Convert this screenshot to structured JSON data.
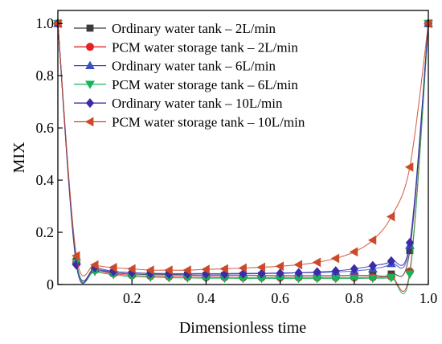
{
  "chart_data": {
    "type": "line",
    "xlabel": "Dimensionless time",
    "ylabel": "MIX",
    "xlim": [
      0.0,
      1.0
    ],
    "ylim": [
      0.0,
      1.05
    ],
    "x_ticks": [
      0.2,
      0.4,
      0.6,
      0.8,
      1.0
    ],
    "x_tick_labels": [
      "0.2",
      "0.4",
      "0.6",
      "0.8",
      "1.0"
    ],
    "y_ticks": [
      0.0,
      0.2,
      0.4,
      0.6,
      0.8,
      1.0
    ],
    "y_tick_labels": [
      "0",
      "0.2",
      "0.4",
      "0.6",
      "0.8",
      "1.0"
    ],
    "grid": false,
    "legend_position": "top-left",
    "series": [
      {
        "name": "Ordinary water tank – 2L/min",
        "color": "#3a3a3a",
        "marker": "square",
        "x": [
          0.0,
          0.05,
          0.1,
          0.15,
          0.2,
          0.25,
          0.3,
          0.35,
          0.4,
          0.45,
          0.5,
          0.55,
          0.6,
          0.65,
          0.7,
          0.75,
          0.8,
          0.85,
          0.9,
          0.95,
          1.0
        ],
        "y": [
          1.0,
          0.09,
          0.06,
          0.045,
          0.04,
          0.038,
          0.037,
          0.036,
          0.035,
          0.035,
          0.035,
          0.035,
          0.034,
          0.034,
          0.034,
          0.034,
          0.035,
          0.035,
          0.04,
          0.13,
          1.0
        ]
      },
      {
        "name": "PCM water storage tank – 2L/min",
        "color": "#e32222",
        "marker": "circle",
        "x": [
          0.0,
          0.05,
          0.1,
          0.15,
          0.2,
          0.25,
          0.3,
          0.35,
          0.4,
          0.45,
          0.5,
          0.55,
          0.6,
          0.65,
          0.7,
          0.75,
          0.8,
          0.85,
          0.9,
          0.95,
          1.0
        ],
        "y": [
          1.0,
          0.085,
          0.055,
          0.042,
          0.035,
          0.032,
          0.03,
          0.029,
          0.028,
          0.028,
          0.027,
          0.027,
          0.027,
          0.027,
          0.027,
          0.027,
          0.027,
          0.028,
          0.03,
          0.05,
          1.0
        ]
      },
      {
        "name": "Ordinary water tank – 6L/min",
        "color": "#3d4fc4",
        "marker": "triangle-up",
        "x": [
          0.0,
          0.05,
          0.1,
          0.15,
          0.2,
          0.25,
          0.3,
          0.35,
          0.4,
          0.45,
          0.5,
          0.55,
          0.6,
          0.65,
          0.7,
          0.75,
          0.8,
          0.85,
          0.9,
          0.95,
          1.0
        ],
        "y": [
          1.0,
          0.09,
          0.06,
          0.05,
          0.045,
          0.043,
          0.042,
          0.042,
          0.042,
          0.042,
          0.043,
          0.043,
          0.044,
          0.045,
          0.046,
          0.048,
          0.052,
          0.06,
          0.08,
          0.15,
          1.0
        ]
      },
      {
        "name": "PCM water storage tank – 6L/min",
        "color": "#18b35a",
        "marker": "triangle-down",
        "x": [
          0.0,
          0.05,
          0.1,
          0.15,
          0.2,
          0.25,
          0.3,
          0.35,
          0.4,
          0.45,
          0.5,
          0.55,
          0.6,
          0.65,
          0.7,
          0.75,
          0.8,
          0.85,
          0.9,
          0.95,
          1.0
        ],
        "y": [
          1.0,
          0.085,
          0.05,
          0.038,
          0.03,
          0.028,
          0.026,
          0.025,
          0.024,
          0.024,
          0.023,
          0.023,
          0.023,
          0.023,
          0.023,
          0.023,
          0.023,
          0.024,
          0.026,
          0.04,
          1.0
        ]
      },
      {
        "name": "Ordinary water tank – 10L/min",
        "color": "#3b2ba8",
        "marker": "diamond",
        "x": [
          0.0,
          0.05,
          0.1,
          0.15,
          0.2,
          0.25,
          0.3,
          0.35,
          0.4,
          0.45,
          0.5,
          0.55,
          0.6,
          0.65,
          0.7,
          0.75,
          0.8,
          0.85,
          0.9,
          0.95,
          1.0
        ],
        "y": [
          1.0,
          0.075,
          0.065,
          0.05,
          0.045,
          0.042,
          0.04,
          0.04,
          0.04,
          0.04,
          0.041,
          0.042,
          0.043,
          0.045,
          0.048,
          0.052,
          0.06,
          0.072,
          0.09,
          0.16,
          1.0
        ]
      },
      {
        "name": "PCM water storage tank – 10L/min",
        "color": "#cc4a2a",
        "marker": "triangle-left",
        "x": [
          0.0,
          0.05,
          0.1,
          0.15,
          0.2,
          0.25,
          0.3,
          0.35,
          0.4,
          0.45,
          0.5,
          0.55,
          0.6,
          0.65,
          0.7,
          0.75,
          0.8,
          0.85,
          0.9,
          0.95,
          1.0
        ],
        "y": [
          1.0,
          0.11,
          0.075,
          0.065,
          0.06,
          0.055,
          0.055,
          0.055,
          0.058,
          0.06,
          0.063,
          0.066,
          0.07,
          0.076,
          0.085,
          0.1,
          0.125,
          0.17,
          0.26,
          0.45,
          1.0
        ]
      }
    ]
  }
}
